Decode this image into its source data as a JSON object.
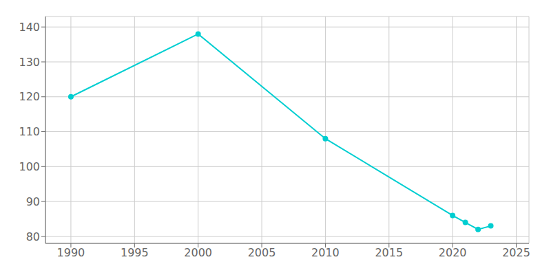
{
  "chart_data": {
    "type": "line",
    "x": [
      1990,
      2000,
      2010,
      2020,
      2021,
      2022,
      2023
    ],
    "values": [
      120,
      138,
      108,
      86,
      84,
      82,
      83
    ],
    "color": "#00CED1",
    "marker": "circle",
    "xlim": [
      1988,
      2026
    ],
    "ylim": [
      78,
      143
    ],
    "xticks": [
      1990,
      1995,
      2000,
      2005,
      2010,
      2015,
      2020,
      2025
    ],
    "yticks": [
      80,
      90,
      100,
      110,
      120,
      130,
      140
    ],
    "grid": true
  }
}
